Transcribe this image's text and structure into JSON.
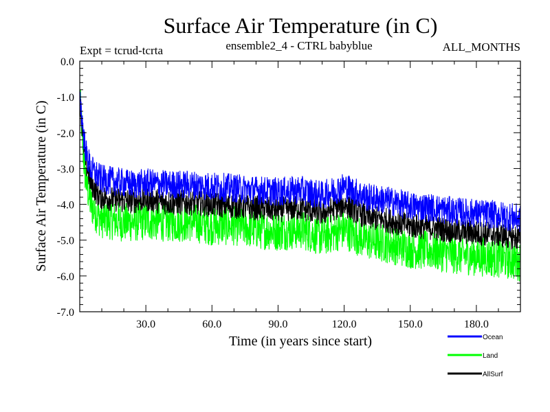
{
  "chart_data": {
    "type": "line",
    "title": "Surface Air Temperature (in C)",
    "subtitle_left": "Expt = tcrud-tcrta",
    "subtitle_center": "ensemble2_4 - CTRL babyblue",
    "subtitle_right": "ALL_MONTHS",
    "xlabel": "Time (in years since start)",
    "ylabel": "Surface Air Temperature (in C)",
    "xlim": [
      0,
      200
    ],
    "ylim": [
      -7.0,
      0.0
    ],
    "x_ticks": [
      30,
      60,
      90,
      120,
      150,
      180
    ],
    "x_tick_labels": [
      "30.0",
      "60.0",
      "90.0",
      "120.0",
      "150.0",
      "180.0"
    ],
    "y_ticks": [
      0,
      -1,
      -2,
      -3,
      -4,
      -5,
      -6,
      -7
    ],
    "y_tick_labels": [
      "0.0",
      "-1.0",
      "-2.0",
      "-3.0",
      "-4.0",
      "-5.0",
      "-6.0",
      "-7.0"
    ],
    "legend_placement": "bottom-right, outside plot",
    "x": [
      0,
      1,
      2,
      3,
      5,
      8,
      10,
      15,
      20,
      25,
      30,
      40,
      50,
      60,
      70,
      80,
      90,
      100,
      110,
      120,
      130,
      140,
      150,
      160,
      170,
      180,
      190,
      200
    ],
    "series": [
      {
        "name": "Ocean",
        "color": "#0000ff",
        "values": [
          -0.9,
          -1.6,
          -2.2,
          -2.6,
          -3.0,
          -3.2,
          -3.3,
          -3.35,
          -3.4,
          -3.45,
          -3.4,
          -3.45,
          -3.45,
          -3.5,
          -3.55,
          -3.6,
          -3.65,
          -3.6,
          -3.75,
          -3.5,
          -3.8,
          -3.9,
          -4.05,
          -4.1,
          -4.2,
          -4.25,
          -4.3,
          -4.4
        ]
      },
      {
        "name": "Land",
        "color": "#00ff00",
        "values": [
          -1.0,
          -2.0,
          -2.9,
          -3.4,
          -4.0,
          -4.3,
          -4.4,
          -4.45,
          -4.5,
          -4.5,
          -4.45,
          -4.5,
          -4.5,
          -4.6,
          -4.6,
          -4.7,
          -4.75,
          -4.7,
          -4.9,
          -4.7,
          -5.0,
          -5.1,
          -5.25,
          -5.3,
          -5.4,
          -5.45,
          -5.5,
          -5.6
        ]
      },
      {
        "name": "AllSurf",
        "color": "#000000",
        "values": [
          -0.9,
          -1.8,
          -2.5,
          -2.9,
          -3.4,
          -3.7,
          -3.8,
          -3.85,
          -3.9,
          -3.9,
          -3.85,
          -3.95,
          -3.95,
          -4.0,
          -4.05,
          -4.1,
          -4.15,
          -4.1,
          -4.25,
          -4.0,
          -4.35,
          -4.45,
          -4.6,
          -4.65,
          -4.75,
          -4.8,
          -4.85,
          -4.95
        ]
      }
    ]
  }
}
